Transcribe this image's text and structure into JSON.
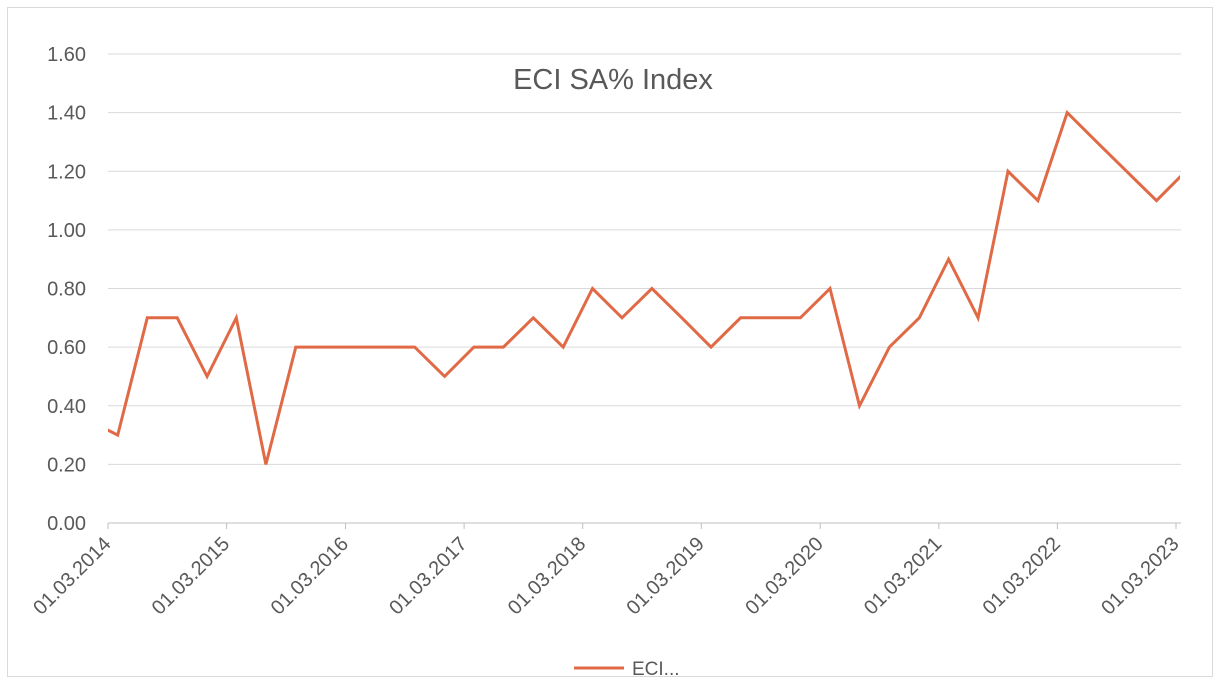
{
  "chart_data": {
    "type": "line",
    "title": "ECI SA% Index",
    "xlabel": "",
    "ylabel": "",
    "ylim": [
      0,
      1.6
    ],
    "y_ticks": [
      "0.00",
      "0.20",
      "0.40",
      "0.60",
      "0.80",
      "1.00",
      "1.20",
      "1.40",
      "1.60"
    ],
    "x_ticks": [
      "01.03.2014",
      "01.03.2015",
      "01.03.2016",
      "01.03.2017",
      "01.03.2018",
      "01.03.2019",
      "01.03.2020",
      "01.03.2021",
      "01.03.2022",
      "01.03.2023"
    ],
    "xlim": [
      "2014-03-01",
      "2023-03-01"
    ],
    "grid": true,
    "legend_position": "bottom",
    "colors": {
      "series": "#E06A45",
      "grid": "#d9d9d9",
      "text": "#595959"
    },
    "series": [
      {
        "name": "ECI...",
        "points": [
          [
            "2014-01-01",
            0.35
          ],
          [
            "2014-03-31",
            0.3
          ],
          [
            "2014-06-30",
            0.7
          ],
          [
            "2014-09-30",
            0.7
          ],
          [
            "2014-12-31",
            0.5
          ],
          [
            "2015-03-31",
            0.7
          ],
          [
            "2015-06-30",
            0.2
          ],
          [
            "2015-09-30",
            0.6
          ],
          [
            "2015-12-31",
            0.6
          ],
          [
            "2016-03-31",
            0.6
          ],
          [
            "2016-06-30",
            0.6
          ],
          [
            "2016-09-30",
            0.6
          ],
          [
            "2016-12-31",
            0.5
          ],
          [
            "2017-03-31",
            0.6
          ],
          [
            "2017-06-30",
            0.6
          ],
          [
            "2017-09-30",
            0.7
          ],
          [
            "2017-12-31",
            0.6
          ],
          [
            "2018-03-31",
            0.8
          ],
          [
            "2018-06-30",
            0.7
          ],
          [
            "2018-09-30",
            0.8
          ],
          [
            "2018-12-31",
            0.7
          ],
          [
            "2019-03-31",
            0.6
          ],
          [
            "2019-06-30",
            0.7
          ],
          [
            "2019-09-30",
            0.7
          ],
          [
            "2019-12-31",
            0.7
          ],
          [
            "2020-03-31",
            0.8
          ],
          [
            "2020-06-30",
            0.4
          ],
          [
            "2020-09-30",
            0.6
          ],
          [
            "2020-12-31",
            0.7
          ],
          [
            "2021-03-31",
            0.9
          ],
          [
            "2021-06-30",
            0.7
          ],
          [
            "2021-09-30",
            1.2
          ],
          [
            "2021-12-31",
            1.1
          ],
          [
            "2022-03-31",
            1.4
          ],
          [
            "2022-06-30",
            1.3
          ],
          [
            "2022-09-30",
            1.2
          ],
          [
            "2022-12-31",
            1.1
          ],
          [
            "2023-03-31",
            1.2
          ]
        ]
      }
    ]
  }
}
